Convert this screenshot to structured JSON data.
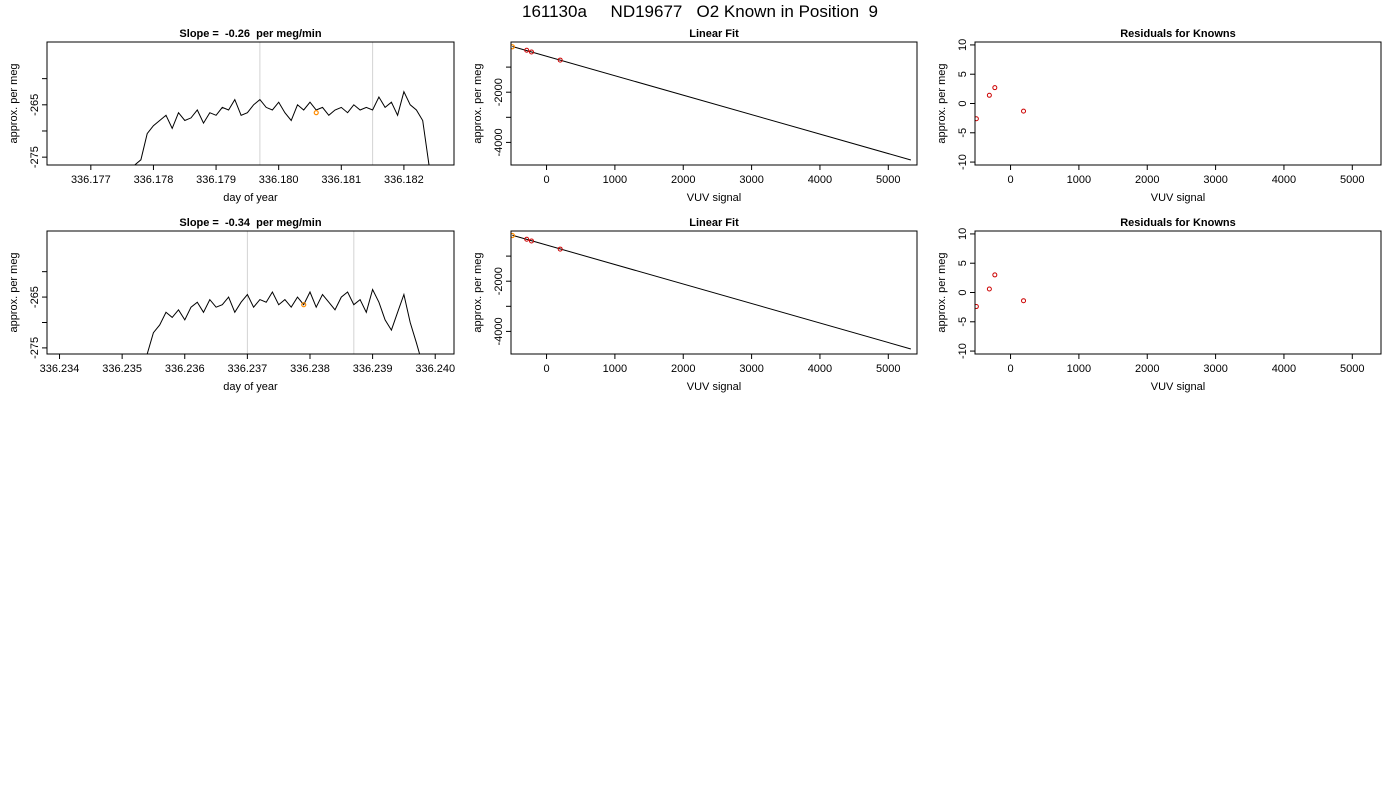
{
  "page": {
    "title": "161130a     ND19677   O2 Known in Position  9"
  },
  "colors": {
    "line": "#000000",
    "vline": "#d3d3d3",
    "known_point": "#ff8c00",
    "residual_point": "#cc0000"
  },
  "chart_data": [
    {
      "type": "line",
      "title": "Slope =  -0.26  per meg/min",
      "xlabel": "day of year",
      "ylabel": "approx. per meg",
      "xlim": [
        336.1763,
        336.1828
      ],
      "ylim": [
        -276.5,
        -253
      ],
      "xticks": [
        "336.177",
        "336.178",
        "336.179",
        "336.180",
        "336.181",
        "336.182"
      ],
      "xtick_values": [
        336.177,
        336.178,
        336.179,
        336.18,
        336.181,
        336.182
      ],
      "yticks": [
        "-275",
        "-265"
      ],
      "ytick_values": [
        -275,
        -265
      ],
      "yminor_values": [
        -270,
        -260
      ],
      "vlines": [
        336.1797,
        336.1815
      ],
      "highlight_point": [
        336.1806,
        -266.5
      ],
      "series": [
        {
          "x": [
            336.1763,
            336.1777,
            336.1778,
            336.1779,
            336.178,
            336.1781,
            336.1782,
            336.1783,
            336.1784,
            336.1785,
            336.1786,
            336.1787,
            336.1788,
            336.1789,
            336.179,
            336.1791,
            336.1792,
            336.1793,
            336.1794,
            336.1795,
            336.1796,
            336.1797,
            336.1798,
            336.1799,
            336.18,
            336.1801,
            336.1802,
            336.1803,
            336.1804,
            336.1805,
            336.1806,
            336.1807,
            336.1808,
            336.1809,
            336.181,
            336.1811,
            336.1812,
            336.1813,
            336.1814,
            336.1815,
            336.1816,
            336.1817,
            336.1818,
            336.1819,
            336.182,
            336.1821,
            336.1822,
            336.1823,
            336.1824
          ],
          "y": [
            -276.5,
            -276.5,
            -275.5,
            -270.5,
            -269.0,
            -268.0,
            -267.0,
            -269.5,
            -266.5,
            -268.0,
            -267.5,
            -266.0,
            -268.5,
            -266.5,
            -267.0,
            -265.5,
            -266.0,
            -264.0,
            -267.0,
            -266.5,
            -265.0,
            -264.0,
            -265.5,
            -266.0,
            -264.5,
            -266.5,
            -268.0,
            -265.0,
            -266.0,
            -264.5,
            -266.0,
            -265.5,
            -267.0,
            -266.0,
            -265.5,
            -266.5,
            -265.0,
            -266.0,
            -265.5,
            -266.0,
            -263.5,
            -265.5,
            -264.5,
            -267.0,
            -262.5,
            -265.0,
            -266.0,
            -268.0,
            -276.5
          ]
        }
      ]
    },
    {
      "type": "scatter",
      "title": "Linear Fit",
      "xlabel": "VUV signal",
      "ylabel": "approx. per meg",
      "xlim": [
        -520,
        5420
      ],
      "ylim": [
        -4900,
        0
      ],
      "xticks": [
        "0",
        "1000",
        "2000",
        "3000",
        "4000",
        "5000"
      ],
      "xtick_values": [
        0,
        1000,
        2000,
        3000,
        4000,
        5000
      ],
      "yticks": [
        "-4000",
        "-2000"
      ],
      "ytick_values": [
        -4000,
        -2000
      ],
      "yminor_values": [
        -3000,
        -1000
      ],
      "fit_line": [
        [
          -500,
          -180
        ],
        [
          5330,
          -4700
        ]
      ],
      "points": [
        [
          -290,
          -330
        ],
        [
          -220,
          -400
        ],
        [
          200,
          -720
        ]
      ],
      "highlight_point": [
        -500,
        -190
      ]
    },
    {
      "type": "scatter",
      "title": "Residuals for Knowns",
      "xlabel": "VUV signal",
      "ylabel": "approx. per meg",
      "xlim": [
        -520,
        5420
      ],
      "ylim": [
        -10.5,
        10.5
      ],
      "xticks": [
        "0",
        "1000",
        "2000",
        "3000",
        "4000",
        "5000"
      ],
      "xtick_values": [
        0,
        1000,
        2000,
        3000,
        4000,
        5000
      ],
      "yticks": [
        "-10",
        "-5",
        "0",
        "5",
        "10"
      ],
      "ytick_values": [
        -10,
        -5,
        0,
        5,
        10
      ],
      "points": [
        [
          -500,
          -2.6
        ],
        [
          -310,
          1.4
        ],
        [
          -230,
          2.7
        ],
        [
          190,
          -1.3
        ]
      ]
    },
    {
      "type": "line",
      "title": "Slope =  -0.34  per meg/min",
      "xlabel": "day of year",
      "ylabel": "approx. per meg",
      "xlim": [
        336.2338,
        336.2403
      ],
      "ylim": [
        -276.2,
        -252
      ],
      "xticks": [
        "336.234",
        "336.235",
        "336.236",
        "336.237",
        "336.238",
        "336.239",
        "336.240"
      ],
      "xtick_values": [
        336.234,
        336.235,
        336.236,
        336.237,
        336.238,
        336.239,
        336.24
      ],
      "yticks": [
        "-275",
        "-265"
      ],
      "ytick_values": [
        -275,
        -265
      ],
      "yminor_values": [
        -270,
        -260
      ],
      "vlines": [
        336.237,
        336.2387
      ],
      "highlight_point": [
        336.2379,
        -266.5
      ],
      "series": [
        {
          "x": [
            336.2338,
            336.2354,
            336.2355,
            336.2356,
            336.2357,
            336.2358,
            336.2359,
            336.236,
            336.2361,
            336.2362,
            336.2363,
            336.2364,
            336.2365,
            336.2366,
            336.2367,
            336.2368,
            336.2369,
            336.237,
            336.2371,
            336.2372,
            336.2373,
            336.2374,
            336.2375,
            336.2376,
            336.2377,
            336.2378,
            336.2379,
            336.238,
            336.2381,
            336.2382,
            336.2383,
            336.2384,
            336.2385,
            336.2386,
            336.2387,
            336.2388,
            336.2389,
            336.239,
            336.2391,
            336.2392,
            336.2393,
            336.2394,
            336.2395,
            336.2396,
            336.2397,
            336.23975
          ],
          "y": [
            -276.2,
            -276.2,
            -272.0,
            -270.5,
            -268.0,
            -269.0,
            -267.5,
            -269.5,
            -267.0,
            -266.0,
            -268.0,
            -265.5,
            -267.0,
            -266.5,
            -265.0,
            -268.0,
            -266.0,
            -264.5,
            -267.0,
            -265.5,
            -266.0,
            -264.0,
            -266.5,
            -265.5,
            -267.0,
            -265.0,
            -266.5,
            -264.0,
            -267.0,
            -264.5,
            -266.0,
            -267.5,
            -265.0,
            -264.0,
            -266.5,
            -265.5,
            -268.0,
            -263.5,
            -266.0,
            -269.5,
            -271.5,
            -268.0,
            -264.5,
            -270.0,
            -274.0,
            -276.2
          ]
        }
      ]
    },
    {
      "type": "scatter",
      "title": "Linear Fit",
      "xlabel": "VUV signal",
      "ylabel": "approx. per meg",
      "xlim": [
        -520,
        5420
      ],
      "ylim": [
        -4900,
        0
      ],
      "xticks": [
        "0",
        "1000",
        "2000",
        "3000",
        "4000",
        "5000"
      ],
      "xtick_values": [
        0,
        1000,
        2000,
        3000,
        4000,
        5000
      ],
      "yticks": [
        "-4000",
        "-2000"
      ],
      "ytick_values": [
        -4000,
        -2000
      ],
      "yminor_values": [
        -3000,
        -1000
      ],
      "fit_line": [
        [
          -500,
          -170
        ],
        [
          5330,
          -4700
        ]
      ],
      "points": [
        [
          -290,
          -330
        ],
        [
          -220,
          -400
        ],
        [
          200,
          -720
        ]
      ],
      "highlight_point": [
        -500,
        -180
      ]
    },
    {
      "type": "scatter",
      "title": "Residuals for Knowns",
      "xlabel": "VUV signal",
      "ylabel": "approx. per meg",
      "xlim": [
        -520,
        5420
      ],
      "ylim": [
        -10.5,
        10.5
      ],
      "xticks": [
        "0",
        "1000",
        "2000",
        "3000",
        "4000",
        "5000"
      ],
      "xtick_values": [
        0,
        1000,
        2000,
        3000,
        4000,
        5000
      ],
      "yticks": [
        "-10",
        "-5",
        "0",
        "5",
        "10"
      ],
      "ytick_values": [
        -10,
        -5,
        0,
        5,
        10
      ],
      "points": [
        [
          -500,
          -2.4
        ],
        [
          -310,
          0.6
        ],
        [
          -230,
          3.0
        ],
        [
          190,
          -1.4
        ]
      ]
    }
  ]
}
